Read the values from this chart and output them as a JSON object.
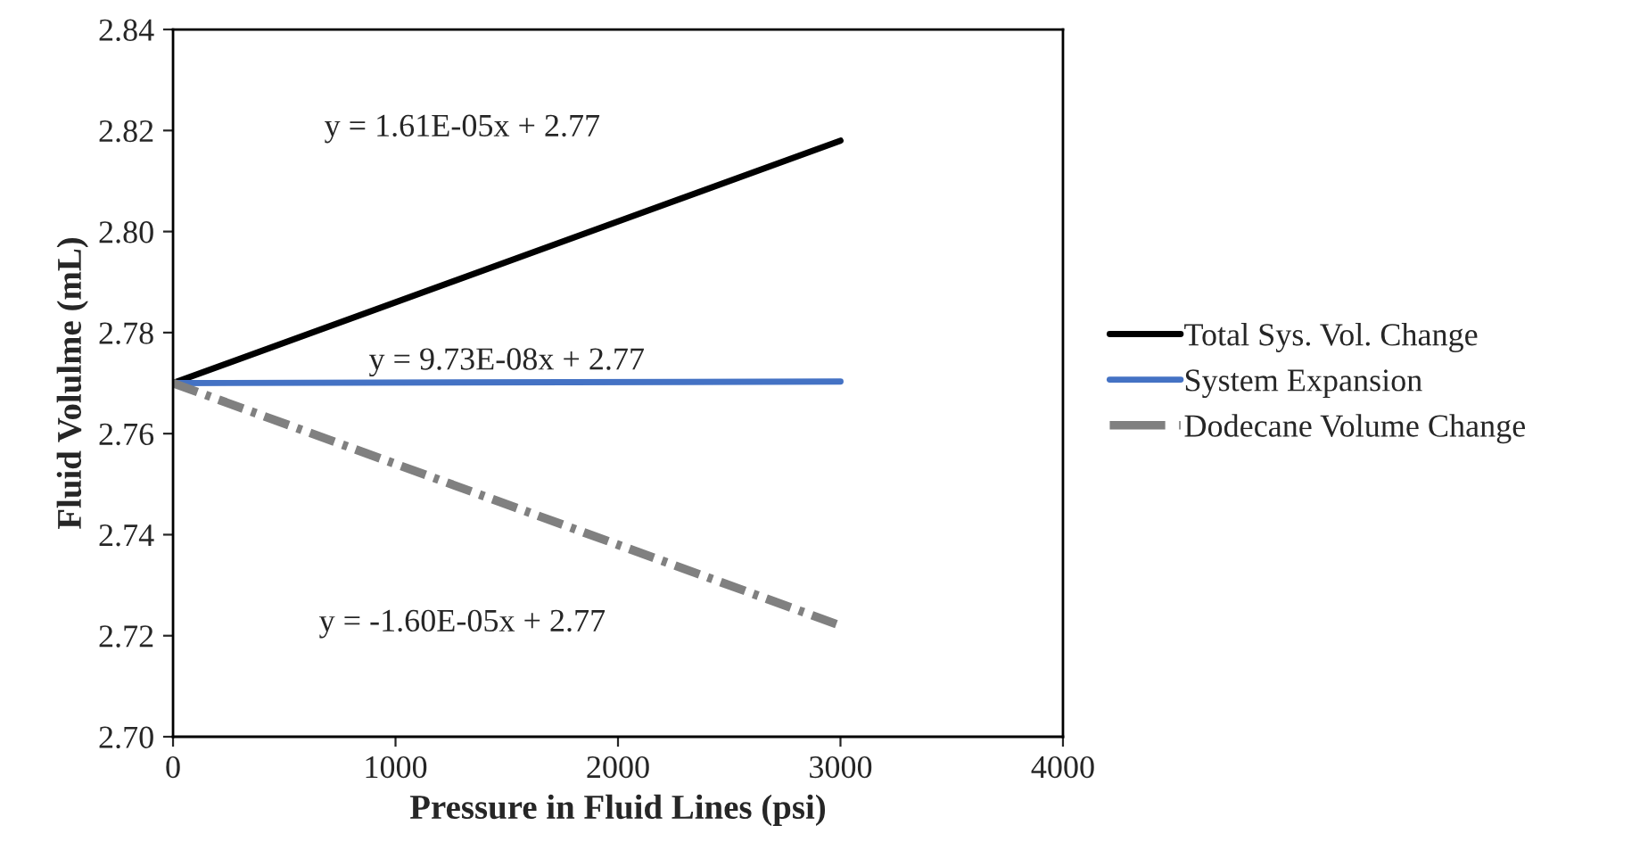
{
  "chart_data": {
    "type": "line",
    "xlabel": "Pressure in Fluid Lines (psi)",
    "ylabel": "Fluid Volulme (mL)",
    "xlim": [
      0,
      4000
    ],
    "xticks": [
      0,
      1000,
      2000,
      3000,
      4000
    ],
    "ylim": [
      2.7,
      2.84
    ],
    "yticks": [
      {
        "value": 2.7,
        "label": "2.70"
      },
      {
        "value": 2.72,
        "label": "2.72"
      },
      {
        "value": 2.74,
        "label": "2.74"
      },
      {
        "value": 2.76,
        "label": "2.76"
      },
      {
        "value": 2.78,
        "label": "2.78"
      },
      {
        "value": 2.8,
        "label": "2.80"
      },
      {
        "value": 2.82,
        "label": "2.82"
      },
      {
        "value": 2.84,
        "label": "2.84"
      }
    ],
    "x": [
      0,
      3000
    ],
    "series": [
      {
        "name": "Total Sys. Vol. Change",
        "color": "#000000",
        "values": [
          2.77,
          2.818
        ],
        "line_style": "solid"
      },
      {
        "name": "System Expansion",
        "color": "#4472c4",
        "values": [
          2.77,
          2.7703
        ],
        "line_style": "solid"
      },
      {
        "name": "Dodecane Volume Change",
        "color": "#808080",
        "values": [
          2.77,
          2.722
        ],
        "line_style": "dashdot"
      }
    ],
    "annotations": [
      "y = 1.61E-05x + 2.77",
      "y = 9.73E-08x + 2.77",
      "y = -1.60E-05x + 2.77"
    ],
    "legend": "right",
    "grid": false,
    "marker": "none"
  }
}
